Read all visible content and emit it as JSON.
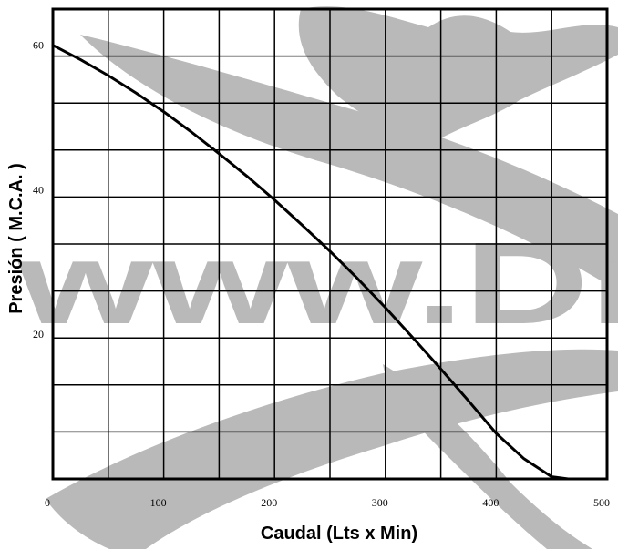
{
  "watermark": {
    "text": "www.Dr",
    "color": "#b9b9b9"
  },
  "chart_data": {
    "type": "line",
    "xlabel": "Caudal (Lts x Min)",
    "ylabel": "Presión  ( M.C.A. )",
    "xlim": [
      0,
      500
    ],
    "ylim": [
      0,
      65
    ],
    "x_ticks": [
      0,
      100,
      200,
      300,
      400,
      500
    ],
    "y_ticks": [
      20,
      40,
      60
    ],
    "x_ticks_labels": [
      "0",
      "100",
      "200",
      "300",
      "400",
      "500"
    ],
    "y_ticks_labels": [
      "20",
      "40",
      "60"
    ],
    "grid": true,
    "line_color": "#000000",
    "series": [
      {
        "x": [
          0,
          25,
          50,
          75,
          100,
          125,
          150,
          175,
          200,
          225,
          250,
          275,
          300,
          325,
          350,
          375,
          400,
          425,
          450,
          465
        ],
        "y": [
          60,
          58,
          55.8,
          53.4,
          50.8,
          48.0,
          45.0,
          41.9,
          38.6,
          35.1,
          31.5,
          27.7,
          23.7,
          19.5,
          15.2,
          10.8,
          6.3,
          2.8,
          0.3,
          0
        ]
      }
    ]
  }
}
